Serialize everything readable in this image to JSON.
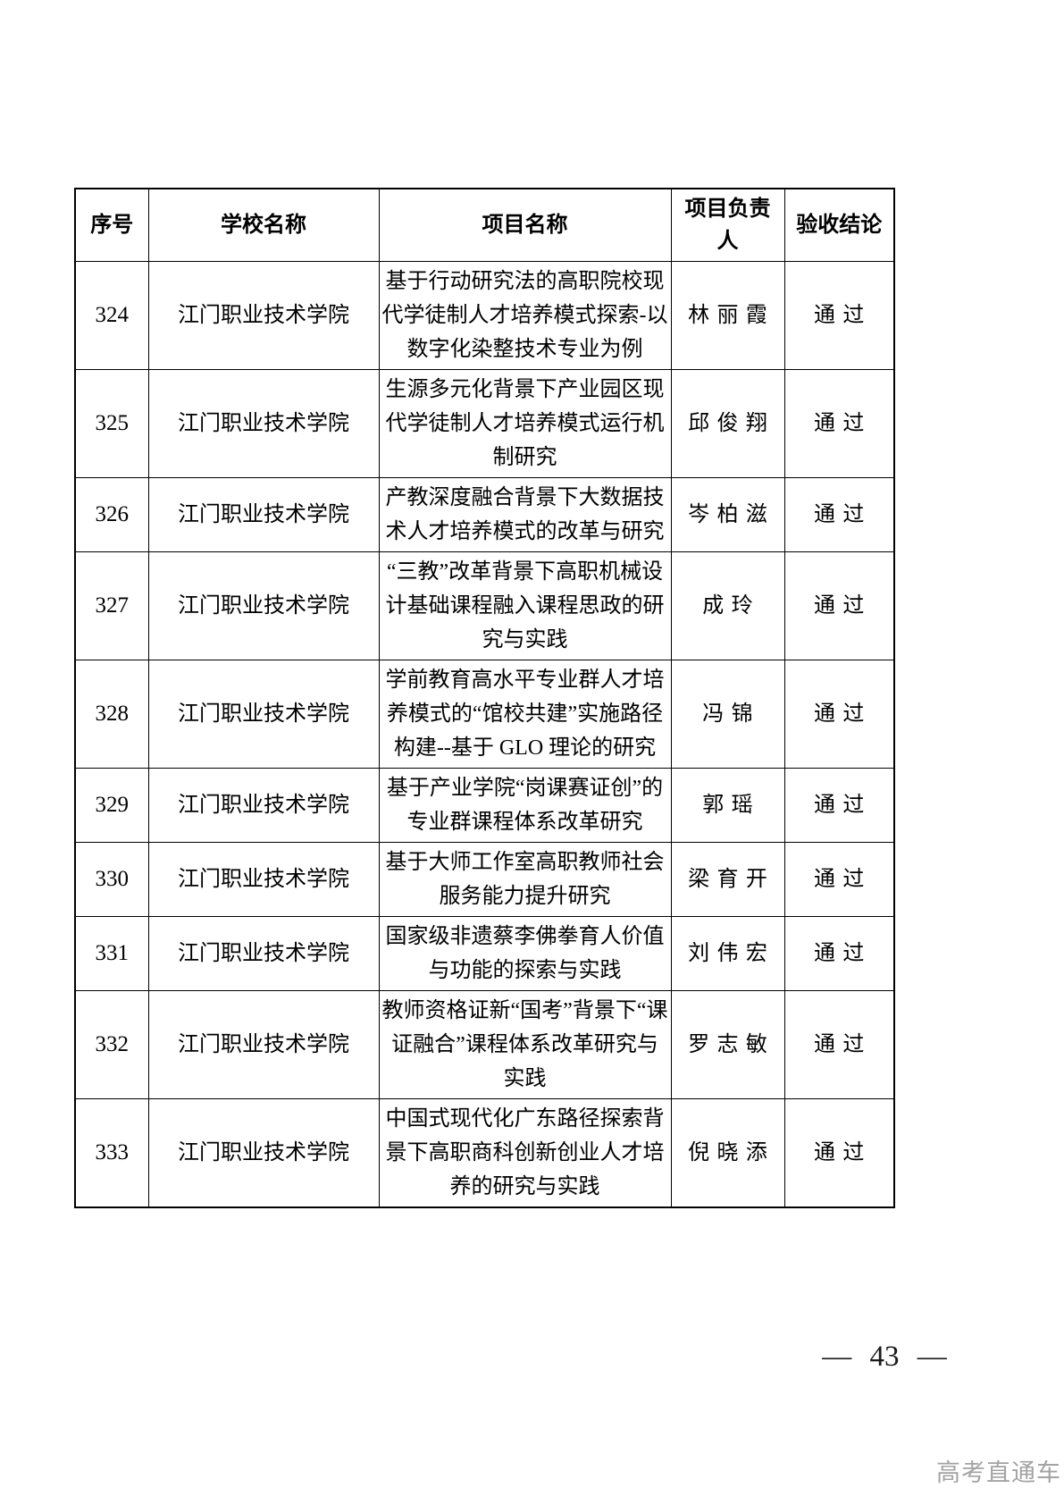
{
  "table": {
    "headers": [
      "序号",
      "学校名称",
      "项目名称",
      "项目负责人",
      "验收结论"
    ],
    "rows": [
      {
        "no": "324",
        "school": "江门职业技术学院",
        "project": "基于行动研究法的高职院校现代学徒制人才培养模式探索-以数字化染整技术专业为例",
        "leader": "林丽霞",
        "result": "通过"
      },
      {
        "no": "325",
        "school": "江门职业技术学院",
        "project": "生源多元化背景下产业园区现代学徒制人才培养模式运行机制研究",
        "leader": "邱俊翔",
        "result": "通过"
      },
      {
        "no": "326",
        "school": "江门职业技术学院",
        "project": "产教深度融合背景下大数据技术人才培养模式的改革与研究",
        "leader": "岑柏滋",
        "result": "通过"
      },
      {
        "no": "327",
        "school": "江门职业技术学院",
        "project": "“三教”改革背景下高职机械设计基础课程融入课程思政的研究与实践",
        "leader": "成玲",
        "result": "通过"
      },
      {
        "no": "328",
        "school": "江门职业技术学院",
        "project": "学前教育高水平专业群人才培养模式的“馆校共建”实施路径构建--基于 GLO 理论的研究",
        "leader": "冯锦",
        "result": "通过"
      },
      {
        "no": "329",
        "school": "江门职业技术学院",
        "project": "基于产业学院“岗课赛证创”的专业群课程体系改革研究",
        "leader": "郭瑶",
        "result": "通过"
      },
      {
        "no": "330",
        "school": "江门职业技术学院",
        "project": "基于大师工作室高职教师社会服务能力提升研究",
        "leader": "梁育开",
        "result": "通过"
      },
      {
        "no": "331",
        "school": "江门职业技术学院",
        "project": "国家级非遗蔡李佛拳育人价值与功能的探索与实践",
        "leader": "刘伟宏",
        "result": "通过"
      },
      {
        "no": "332",
        "school": "江门职业技术学院",
        "project": "教师资格证新“国考”背景下“课证融合”课程体系改革研究与实践",
        "leader": "罗志敏",
        "result": "通过"
      },
      {
        "no": "333",
        "school": "江门职业技术学院",
        "project": "中国式现代化广东路径探索背景下高职商科创新创业人才培养的研究与实践",
        "leader": "倪晓添",
        "result": "通过"
      }
    ]
  },
  "footer": {
    "page_number": "— 43 —",
    "watermark": "高考直通车"
  },
  "colors": {
    "text": "#000000",
    "border": "#000000",
    "watermark": "#a3a3a3",
    "page_background": "#ffffff"
  }
}
